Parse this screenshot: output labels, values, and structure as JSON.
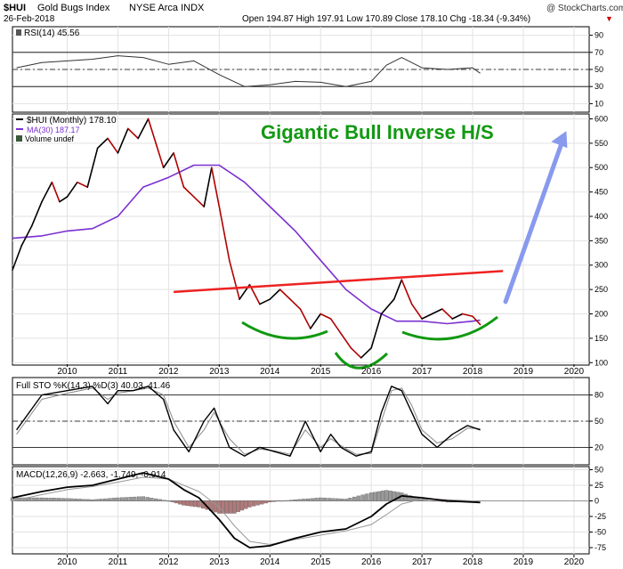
{
  "header": {
    "symbol": "$HUI",
    "name": "Gold Bugs Index",
    "exchange": "NYSE Arca INDX",
    "date": "26-Feb-2018",
    "source": "@ StockCharts.com",
    "quote": "Open 194.87  High 197.91  Low 170.89  Close 178.10  Chg -18.34 (-9.34%)",
    "chg_arrow": "▼"
  },
  "colors": {
    "price": "#000000",
    "price_down": "#b00000",
    "ma": "#7b2fd0",
    "trendline": "#ee2222",
    "arcs": "#119911",
    "arrow": "#8899ee",
    "annotation": "#119911",
    "hist_pos": "#999999",
    "hist_neg": "#b07a7a"
  },
  "chart_data": [
    {
      "type": "line",
      "panel": "rsi",
      "legend": "RSI(14) 45.56",
      "ylim": [
        0,
        100
      ],
      "yticks": [
        10,
        30,
        50,
        70,
        90
      ],
      "reference_lines": [
        30,
        50,
        70
      ],
      "x": [
        2009.0,
        2009.5,
        2010.0,
        2010.5,
        2011.0,
        2011.5,
        2012.0,
        2012.5,
        2013.0,
        2013.5,
        2014.0,
        2014.5,
        2015.0,
        2015.5,
        2016.0,
        2016.3,
        2016.6,
        2017.0,
        2017.5,
        2018.0,
        2018.15
      ],
      "values": [
        52,
        58,
        60,
        62,
        66,
        64,
        56,
        60,
        44,
        30,
        32,
        36,
        35,
        30,
        36,
        55,
        64,
        52,
        50,
        52,
        45.56
      ]
    },
    {
      "type": "line",
      "panel": "price",
      "title": "Gigantic Bull Inverse H/S",
      "legend": [
        "$HUI (Monthly) 178.10",
        "MA(30) 187.17",
        "Volume undef"
      ],
      "ylim": [
        100,
        600
      ],
      "yticks": [
        100,
        150,
        200,
        250,
        300,
        350,
        400,
        450,
        500,
        550,
        600
      ],
      "xticks": [
        "2010",
        "2011",
        "2012",
        "2013",
        "2014",
        "2015",
        "2016",
        "2017",
        "2018",
        "2019",
        "2020"
      ],
      "series": [
        {
          "name": "$HUI (Monthly)",
          "x": [
            2008.92,
            2009.1,
            2009.3,
            2009.5,
            2009.7,
            2009.85,
            2010.0,
            2010.2,
            2010.4,
            2010.6,
            2010.8,
            2011.0,
            2011.2,
            2011.4,
            2011.6,
            2011.75,
            2011.9,
            2012.1,
            2012.3,
            2012.5,
            2012.7,
            2012.85,
            2013.0,
            2013.2,
            2013.4,
            2013.6,
            2013.8,
            2014.0,
            2014.2,
            2014.4,
            2014.6,
            2014.8,
            2015.0,
            2015.2,
            2015.4,
            2015.6,
            2015.8,
            2016.0,
            2016.2,
            2016.45,
            2016.6,
            2016.8,
            2017.0,
            2017.2,
            2017.4,
            2017.6,
            2017.8,
            2018.0,
            2018.15
          ],
          "values": [
            290,
            340,
            380,
            430,
            470,
            430,
            440,
            470,
            460,
            540,
            560,
            530,
            580,
            560,
            600,
            550,
            500,
            530,
            460,
            440,
            420,
            500,
            420,
            310,
            230,
            260,
            220,
            230,
            250,
            230,
            210,
            170,
            200,
            190,
            160,
            130,
            110,
            130,
            200,
            230,
            270,
            220,
            190,
            200,
            210,
            190,
            200,
            195,
            178.1
          ]
        },
        {
          "name": "MA(30)",
          "x": [
            2008.92,
            2009.5,
            2010.0,
            2010.5,
            2011.0,
            2011.5,
            2012.0,
            2012.5,
            2013.0,
            2013.5,
            2014.0,
            2014.5,
            2015.0,
            2015.5,
            2016.0,
            2016.5,
            2017.0,
            2017.5,
            2018.0,
            2018.15
          ],
          "values": [
            355,
            360,
            370,
            375,
            400,
            460,
            480,
            505,
            505,
            470,
            420,
            370,
            310,
            250,
            210,
            185,
            185,
            180,
            185,
            187.17
          ]
        }
      ],
      "annotations": {
        "trendline": {
          "x": [
            2012.1,
            2018.6
          ],
          "values": [
            245,
            288
          ]
        },
        "arrow": {
          "x": [
            2018.65,
            2019.85
          ],
          "values": [
            225,
            575
          ]
        }
      }
    },
    {
      "type": "line",
      "panel": "sto",
      "legend": "Full STO %K(14,3) %D(3) 40.03, 41.46",
      "ylim": [
        0,
        100
      ],
      "yticks": [
        20,
        50,
        80
      ],
      "reference_lines": [
        20,
        50,
        80
      ],
      "x": [
        2009.0,
        2009.5,
        2010.0,
        2010.5,
        2010.8,
        2011.0,
        2011.3,
        2011.6,
        2011.9,
        2012.1,
        2012.4,
        2012.7,
        2012.9,
        2013.2,
        2013.5,
        2013.8,
        2014.1,
        2014.4,
        2014.7,
        2015.0,
        2015.2,
        2015.4,
        2015.7,
        2016.0,
        2016.2,
        2016.4,
        2016.6,
        2016.8,
        2017.0,
        2017.3,
        2017.6,
        2017.9,
        2018.15
      ],
      "series": [
        {
          "name": "%K",
          "values": [
            40,
            80,
            85,
            90,
            70,
            85,
            85,
            90,
            75,
            40,
            15,
            50,
            65,
            20,
            10,
            20,
            15,
            10,
            50,
            15,
            35,
            20,
            10,
            15,
            60,
            90,
            85,
            60,
            35,
            20,
            35,
            45,
            40.03
          ]
        },
        {
          "name": "%D",
          "values": [
            35,
            75,
            82,
            88,
            75,
            82,
            85,
            88,
            80,
            50,
            20,
            40,
            60,
            30,
            12,
            18,
            16,
            12,
            40,
            20,
            30,
            22,
            12,
            13,
            50,
            85,
            88,
            68,
            40,
            25,
            30,
            42,
            41.46
          ]
        }
      ]
    },
    {
      "type": "line",
      "panel": "macd",
      "legend": "MACD(12,26,9) -2.663, -1.749, -0.914",
      "ylim": [
        -85,
        55
      ],
      "yticks": [
        -75,
        -50,
        -25,
        0,
        25,
        50
      ],
      "xticks": [
        "2010",
        "2011",
        "2012",
        "2013",
        "2014",
        "2015",
        "2016",
        "2017",
        "2018",
        "2019",
        "2020"
      ],
      "x": [
        2008.92,
        2009.5,
        2010.0,
        2010.5,
        2011.0,
        2011.5,
        2012.0,
        2012.3,
        2012.6,
        2013.0,
        2013.3,
        2013.6,
        2014.0,
        2014.5,
        2015.0,
        2015.5,
        2016.0,
        2016.3,
        2016.6,
        2017.0,
        2017.5,
        2018.0,
        2018.15
      ],
      "series": [
        {
          "name": "MACD",
          "values": [
            5,
            15,
            22,
            25,
            35,
            45,
            35,
            18,
            5,
            -30,
            -60,
            -75,
            -72,
            -60,
            -50,
            -45,
            -25,
            -5,
            8,
            5,
            0,
            -2,
            -2.663
          ]
        },
        {
          "name": "Signal",
          "values": [
            0,
            10,
            18,
            23,
            30,
            38,
            35,
            25,
            15,
            -10,
            -40,
            -65,
            -70,
            -62,
            -55,
            -48,
            -38,
            -22,
            -5,
            3,
            2,
            0,
            -1.749
          ]
        },
        {
          "name": "Histogram",
          "values": [
            5,
            5,
            4,
            2,
            5,
            7,
            0,
            -7,
            -10,
            -20,
            -20,
            -10,
            -2,
            2,
            5,
            3,
            13,
            17,
            13,
            2,
            -2,
            -2,
            -0.914
          ]
        }
      ]
    }
  ]
}
